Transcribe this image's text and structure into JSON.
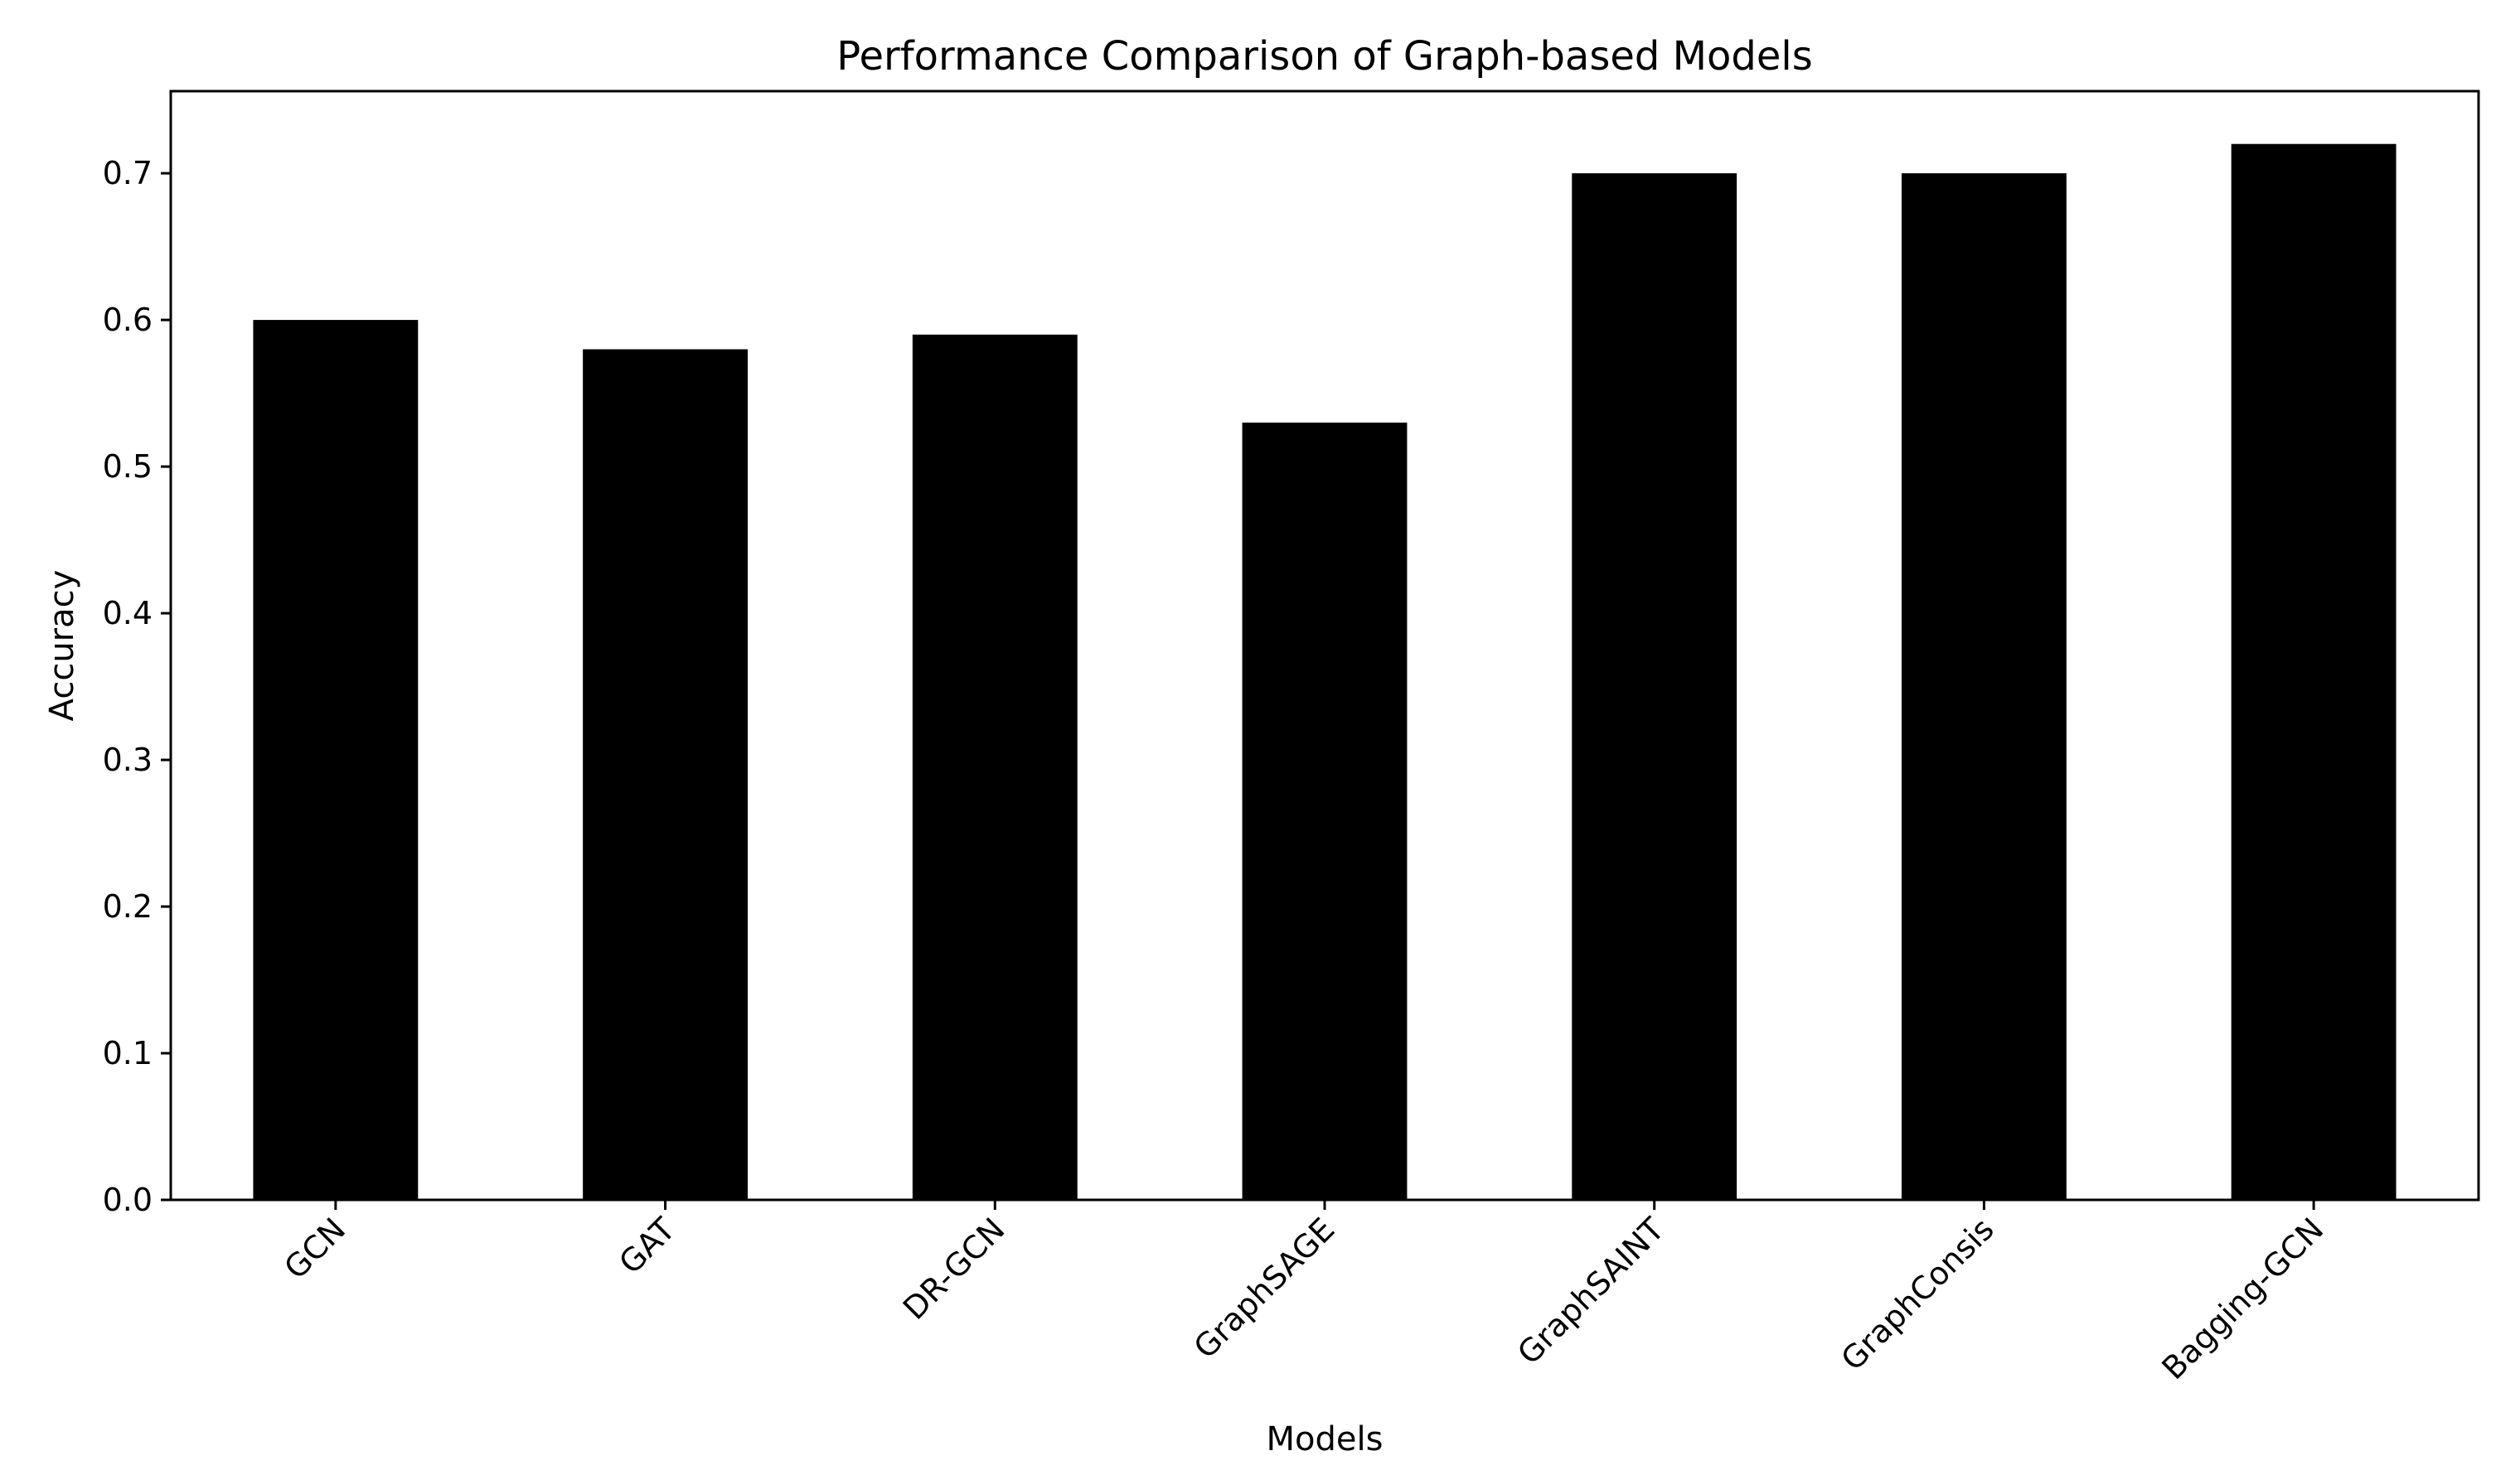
{
  "colors": {
    "bar": "#000000",
    "axis": "#000000",
    "background": "#ffffff"
  },
  "chart_data": {
    "type": "bar",
    "title": "Performance Comparison of Graph-based Models",
    "xlabel": "Models",
    "ylabel": "Accuracy",
    "categories": [
      "GCN",
      "GAT",
      "DR-GCN",
      "GraphSAGE",
      "GraphSAINT",
      "GraphConsis",
      "Bagging-GCN"
    ],
    "values": [
      0.6,
      0.58,
      0.59,
      0.53,
      0.7,
      0.7,
      0.72
    ],
    "ylim": [
      0,
      0.756
    ],
    "yticks": [
      0.0,
      0.1,
      0.2,
      0.3,
      0.4,
      0.5,
      0.6,
      0.7
    ],
    "ytick_labels": [
      "0.0",
      "0.1",
      "0.2",
      "0.3",
      "0.4",
      "0.5",
      "0.6",
      "0.7"
    ],
    "grid": false,
    "legend": "none",
    "xtick_rotation": "45 degrees"
  }
}
